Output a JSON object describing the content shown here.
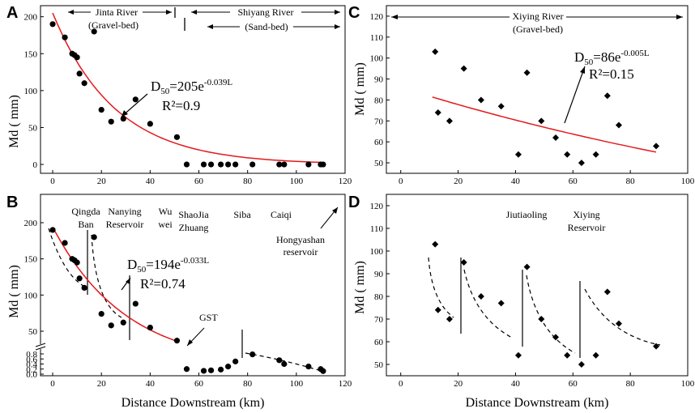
{
  "chart_data": [
    {
      "panel": "A",
      "type": "scatter",
      "xlabel": "",
      "ylabel": "Md ( mm)",
      "xlim": [
        -5,
        120
      ],
      "ylim": [
        -12,
        215
      ],
      "xticks": [
        0,
        20,
        40,
        60,
        80,
        100,
        120
      ],
      "yticks": [
        0,
        50,
        100,
        150,
        200
      ],
      "points": [
        [
          0,
          190
        ],
        [
          5,
          172
        ],
        [
          8,
          150
        ],
        [
          9,
          148
        ],
        [
          10,
          145
        ],
        [
          11,
          123
        ],
        [
          13,
          110
        ],
        [
          17,
          180
        ],
        [
          20,
          74
        ],
        [
          24,
          58
        ],
        [
          29,
          62
        ],
        [
          34,
          88
        ],
        [
          40,
          55
        ],
        [
          51,
          37
        ],
        [
          55,
          0
        ],
        [
          62,
          0
        ],
        [
          65,
          0
        ],
        [
          69,
          0
        ],
        [
          72,
          0
        ],
        [
          75,
          0
        ],
        [
          82,
          0
        ],
        [
          93,
          0
        ],
        [
          95,
          0
        ],
        [
          105,
          0
        ],
        [
          110,
          0
        ],
        [
          111,
          0
        ]
      ],
      "fit": {
        "a": 205,
        "b": 0.039,
        "x_from": 0,
        "x_to": 111,
        "color": "#e31a1c"
      },
      "equation": {
        "prefix": "D",
        "sub": "50",
        "main": "=205e",
        "exp": "-0.039L",
        "r2": "R²=0.9"
      },
      "reaches": [
        {
          "name": "Jinta River",
          "bed": "(Gravel-bed)"
        },
        {
          "name": "Shiyang River",
          "bed": "(Sand-bed)"
        }
      ]
    },
    {
      "panel": "B",
      "type": "scatter",
      "xlabel": "Distance Downstream  (km)",
      "ylabel": "Md ( mm)",
      "xlim": [
        -5,
        120
      ],
      "xticks": [
        0,
        20,
        40,
        60,
        80,
        100,
        120
      ],
      "upper_yticks": [
        50,
        100,
        150,
        200
      ],
      "lower_yticks": [
        0.0,
        0.2,
        0.4,
        0.6,
        0.8
      ],
      "upper_points": [
        [
          0,
          190
        ],
        [
          5,
          172
        ],
        [
          8,
          150
        ],
        [
          9,
          148
        ],
        [
          10,
          145
        ],
        [
          11,
          123
        ],
        [
          13,
          110
        ],
        [
          17,
          180
        ],
        [
          20,
          74
        ],
        [
          24,
          58
        ],
        [
          29,
          62
        ],
        [
          34,
          88
        ],
        [
          40,
          55
        ],
        [
          51,
          37
        ]
      ],
      "lower_points": [
        [
          55,
          0.2
        ],
        [
          62,
          0.13
        ],
        [
          65,
          0.15
        ],
        [
          69,
          0.18
        ],
        [
          72,
          0.3
        ],
        [
          75,
          0.5
        ],
        [
          82,
          0.78
        ],
        [
          93,
          0.55
        ],
        [
          95,
          0.4
        ],
        [
          105,
          0.3
        ],
        [
          110,
          0.2
        ],
        [
          111,
          0.12
        ]
      ],
      "fit": {
        "a": 194,
        "b": 0.033,
        "x_from": 0,
        "x_to": 51,
        "color": "#e31a1c"
      },
      "equation": {
        "prefix": "D",
        "sub": "50",
        "main": "=194e",
        "exp": "-0.033L",
        "r2": "R²=0.74"
      },
      "sites": [
        "Qingda",
        "Ban",
        "Nanying",
        "Reservoir",
        "Wu",
        "wei",
        "ShaoJia",
        "Zhuang",
        "Siba",
        "Caiqi",
        "Hongyashan",
        "reservoir"
      ],
      "gst_label": "GST"
    },
    {
      "panel": "C",
      "type": "scatter",
      "xlabel": "",
      "ylabel": "Md ( mm)",
      "xlim": [
        -5,
        100
      ],
      "ylim": [
        45,
        125
      ],
      "xticks": [
        0,
        20,
        40,
        60,
        80,
        100
      ],
      "yticks": [
        50,
        60,
        70,
        80,
        90,
        100,
        110,
        120
      ],
      "points": [
        [
          12,
          103
        ],
        [
          13,
          74
        ],
        [
          17,
          70
        ],
        [
          22,
          95
        ],
        [
          28,
          80
        ],
        [
          35,
          77
        ],
        [
          41,
          54
        ],
        [
          44,
          93
        ],
        [
          49,
          70
        ],
        [
          54,
          62
        ],
        [
          58,
          54
        ],
        [
          63,
          50
        ],
        [
          68,
          54
        ],
        [
          72,
          82
        ],
        [
          76,
          68
        ],
        [
          89,
          58
        ]
      ],
      "fit": {
        "a": 86,
        "b": 0.005,
        "x_from": 11,
        "x_to": 89,
        "color": "#e31a1c"
      },
      "equation": {
        "prefix": "D",
        "sub": "50",
        "main": "=86e",
        "exp": "-0.005L",
        "r2": "R²=0.15"
      },
      "reach": {
        "name": "Xiying River",
        "bed": "(Gravel-bed)"
      }
    },
    {
      "panel": "D",
      "type": "scatter",
      "xlabel": "Distance Downstream  (km)",
      "ylabel": "Md ( mm)",
      "xlim": [
        -5,
        100
      ],
      "ylim": [
        45,
        125
      ],
      "xticks": [
        0,
        20,
        40,
        60,
        80,
        100
      ],
      "yticks": [
        50,
        60,
        70,
        80,
        90,
        100,
        110,
        120
      ],
      "points": [
        [
          12,
          103
        ],
        [
          13,
          74
        ],
        [
          17,
          70
        ],
        [
          22,
          95
        ],
        [
          28,
          80
        ],
        [
          35,
          77
        ],
        [
          41,
          54
        ],
        [
          44,
          93
        ],
        [
          49,
          70
        ],
        [
          54,
          62
        ],
        [
          58,
          54
        ],
        [
          63,
          50
        ],
        [
          68,
          54
        ],
        [
          72,
          82
        ],
        [
          76,
          68
        ],
        [
          89,
          58
        ]
      ],
      "sites": [
        "Jiutiaoling",
        "Xiying",
        "Reservoir"
      ]
    }
  ]
}
